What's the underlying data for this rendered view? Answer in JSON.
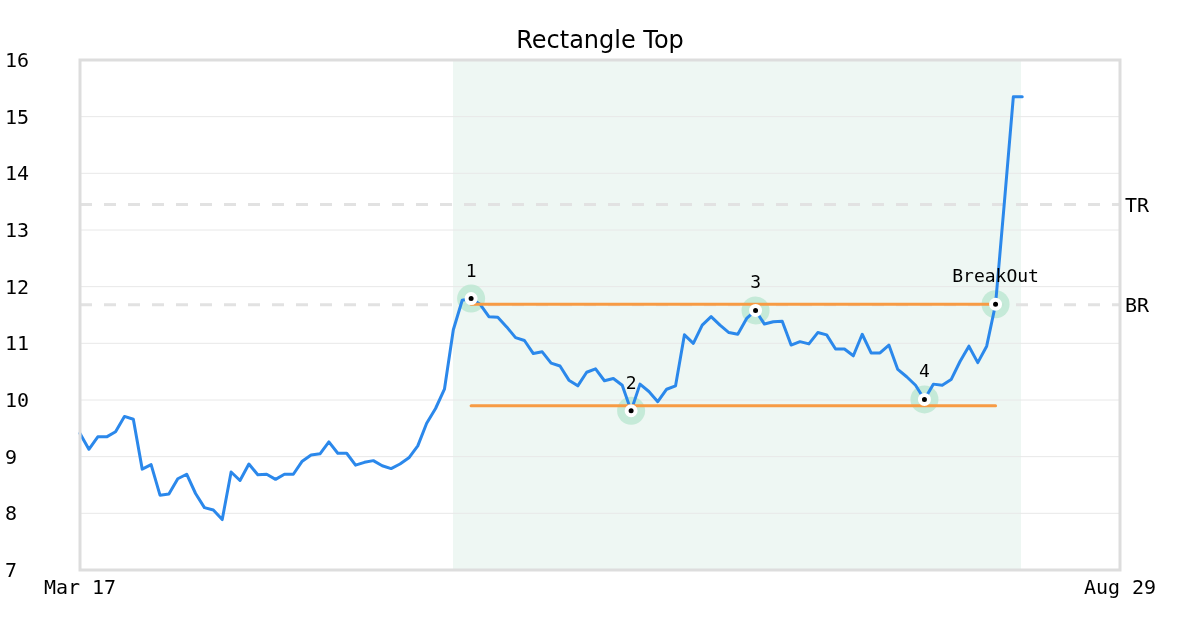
{
  "chart_data": {
    "type": "line",
    "title": "Rectangle Top",
    "categories": [
      "Mar 17",
      null,
      null,
      null,
      null,
      null,
      null,
      null,
      null,
      null,
      null,
      null,
      null,
      null,
      null,
      null,
      null,
      null,
      null,
      null,
      null,
      null,
      null,
      null,
      null,
      null,
      null,
      null,
      null,
      null,
      null,
      null,
      null,
      null,
      null,
      null,
      null,
      null,
      null,
      null,
      null,
      null,
      null,
      null,
      null,
      null,
      null,
      null,
      null,
      null,
      null,
      null,
      null,
      null,
      null,
      null,
      null,
      null,
      null,
      null,
      null,
      null,
      null,
      null,
      null,
      null,
      null,
      null,
      null,
      null,
      null,
      null,
      null,
      null,
      null,
      null,
      null,
      null,
      null,
      null,
      null,
      null,
      null,
      null,
      null,
      null,
      null,
      null,
      null,
      null,
      null,
      null,
      null,
      null,
      null,
      null,
      null,
      null,
      null,
      null,
      null,
      null,
      null,
      null,
      null,
      null,
      null,
      null,
      null,
      null,
      null,
      null,
      null,
      null,
      null,
      null,
      null,
      "Aug 29"
    ],
    "ylim": [
      7,
      16
    ],
    "yticks": [
      7,
      8,
      9,
      10,
      11,
      12,
      13,
      14,
      15,
      16
    ],
    "grid": "y",
    "series": [
      {
        "color": "#2b88eb",
        "values": [
          9.41,
          9.13,
          9.35,
          9.35,
          9.44,
          9.71,
          9.66,
          8.78,
          8.86,
          8.32,
          8.34,
          8.61,
          8.69,
          8.35,
          8.1,
          8.06,
          7.89,
          8.73,
          8.58,
          8.87,
          8.68,
          8.69,
          8.6,
          8.69,
          8.69,
          8.92,
          9.03,
          9.05,
          9.26,
          9.06,
          9.06,
          8.85,
          8.9,
          8.93,
          8.84,
          8.79,
          8.87,
          8.98,
          9.19,
          9.59,
          9.85,
          10.19,
          11.24,
          11.76,
          11.79,
          11.69,
          11.47,
          11.46,
          11.29,
          11.1,
          11.05,
          10.82,
          10.85,
          10.65,
          10.6,
          10.35,
          10.25,
          10.49,
          10.55,
          10.34,
          10.38,
          10.26,
          9.81,
          10.28,
          10.15,
          9.97,
          10.19,
          10.25,
          11.15,
          11.0,
          11.32,
          11.47,
          11.32,
          11.19,
          11.16,
          11.44,
          11.58,
          11.34,
          11.38,
          11.39,
          10.97,
          11.03,
          10.99,
          11.19,
          11.15,
          10.9,
          10.9,
          10.78,
          11.16,
          10.83,
          10.83,
          10.97,
          10.54,
          10.41,
          10.26,
          10.01,
          10.28,
          10.26,
          10.36,
          10.68,
          10.95,
          10.66,
          10.95,
          11.69,
          13.5,
          15.35,
          15.35,
          null,
          null,
          null,
          null,
          null,
          null,
          null,
          null,
          null,
          null,
          null
        ]
      },
      {
        "type": "line",
        "color": "#f79b44",
        "values": [
          null,
          null,
          null,
          null,
          null,
          null,
          null,
          null,
          null,
          null,
          null,
          null,
          null,
          null,
          null,
          null,
          null,
          null,
          null,
          null,
          null,
          null,
          null,
          null,
          null,
          null,
          null,
          null,
          null,
          null,
          null,
          null,
          null,
          null,
          null,
          null,
          null,
          null,
          null,
          null,
          null,
          null,
          null,
          null,
          11.69,
          11.69,
          11.69,
          11.69,
          11.69,
          11.69,
          11.69,
          11.69,
          11.69,
          11.69,
          11.69,
          11.69,
          11.69,
          11.69,
          11.69,
          11.69,
          11.69,
          11.69,
          11.69,
          11.69,
          11.69,
          11.69,
          11.69,
          11.69,
          11.69,
          11.69,
          11.69,
          11.69,
          11.69,
          11.69,
          11.69,
          11.69,
          11.69,
          11.69,
          11.69,
          11.69,
          11.69,
          11.69,
          11.69,
          11.69,
          11.69,
          11.69,
          11.69,
          11.69,
          11.69,
          11.69,
          11.69,
          11.69,
          11.69,
          11.69,
          11.69,
          11.69,
          11.69,
          11.69,
          11.69,
          11.69,
          11.69,
          11.69,
          11.69,
          11.69,
          null,
          null,
          null,
          null,
          null,
          null,
          null,
          null,
          null,
          null,
          null,
          null,
          null,
          null
        ]
      },
      {
        "type": "line",
        "color": "#f79b44",
        "values": [
          null,
          null,
          null,
          null,
          null,
          null,
          null,
          null,
          null,
          null,
          null,
          null,
          null,
          null,
          null,
          null,
          null,
          null,
          null,
          null,
          null,
          null,
          null,
          null,
          null,
          null,
          null,
          null,
          null,
          null,
          null,
          null,
          null,
          null,
          null,
          null,
          null,
          null,
          null,
          null,
          null,
          null,
          null,
          null,
          9.9,
          9.9,
          9.9,
          9.9,
          9.9,
          9.9,
          9.9,
          9.9,
          9.9,
          9.9,
          9.9,
          9.9,
          9.9,
          9.9,
          9.9,
          9.9,
          9.9,
          9.9,
          9.9,
          9.9,
          9.9,
          9.9,
          9.9,
          9.9,
          9.9,
          9.9,
          9.9,
          9.9,
          9.9,
          9.9,
          9.9,
          9.9,
          9.9,
          9.9,
          9.9,
          9.9,
          9.9,
          9.9,
          9.9,
          9.9,
          9.9,
          9.9,
          9.9,
          9.9,
          9.9,
          9.9,
          9.9,
          9.9,
          9.9,
          9.9,
          9.9,
          9.9,
          9.9,
          9.9,
          9.9,
          9.9,
          9.9,
          9.9,
          9.9,
          9.9,
          null,
          null,
          null,
          null,
          null,
          null,
          null,
          null,
          null,
          null,
          null,
          null,
          null,
          null
        ]
      },
      {
        "type": "scatter",
        "color": "#000000",
        "marker": "circle",
        "values": [
          null,
          null,
          null,
          null,
          null,
          null,
          null,
          null,
          null,
          null,
          null,
          null,
          null,
          null,
          null,
          null,
          null,
          null,
          null,
          null,
          null,
          null,
          null,
          null,
          null,
          null,
          null,
          null,
          null,
          null,
          null,
          null,
          null,
          null,
          null,
          null,
          null,
          null,
          null,
          null,
          null,
          null,
          null,
          null,
          11.79,
          null,
          null,
          null,
          null,
          null,
          null,
          null,
          null,
          null,
          null,
          null,
          null,
          null,
          null,
          null,
          null,
          null,
          9.81,
          null,
          null,
          null,
          null,
          null,
          null,
          null,
          null,
          null,
          null,
          null,
          null,
          null,
          11.58,
          null,
          null,
          null,
          null,
          null,
          null,
          null,
          null,
          null,
          null,
          null,
          null,
          null,
          null,
          null,
          null,
          null,
          null,
          10.01,
          null,
          null,
          null,
          null,
          null,
          null,
          null,
          11.69,
          null,
          null,
          null,
          null,
          null,
          null,
          null,
          null,
          null,
          null,
          null,
          null,
          null,
          null
        ]
      }
    ],
    "ref_lines": [
      {
        "axis": "y",
        "value": 13.45,
        "label": "TR",
        "color": "#e2e2e2",
        "line_style": "dashed"
      },
      {
        "axis": "y",
        "value": 11.68,
        "label": "BR",
        "color": "#e2e2e2",
        "line_style": "dashed"
      }
    ],
    "annotations": [
      {
        "text": "1",
        "y": 11.79
      },
      {
        "text": "2",
        "y": 9.81
      },
      {
        "text": "3",
        "y": 11.58
      },
      {
        "text": "4",
        "y": 10.01
      },
      {
        "text": "BreakOut",
        "y": 11.69
      }
    ]
  }
}
